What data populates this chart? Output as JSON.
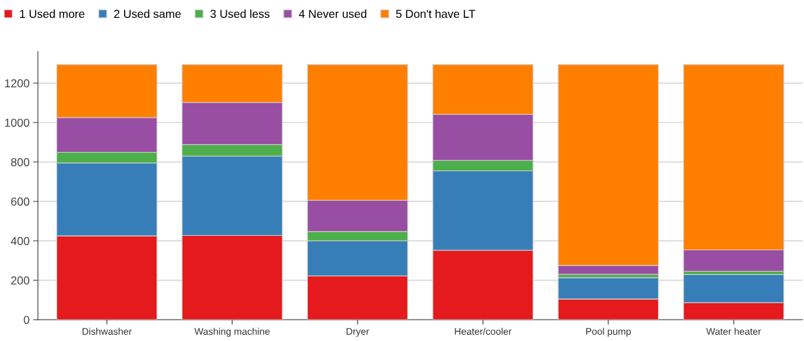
{
  "chart_data": {
    "type": "bar",
    "stacked": true,
    "categories": [
      "Dishwasher",
      "Washing machine",
      "Dryer",
      "Heater/cooler",
      "Pool pump",
      "Water heater"
    ],
    "series": [
      {
        "name": "1 Used more",
        "color": "#e41a1c",
        "values": [
          425,
          427,
          222,
          352,
          105,
          86
        ]
      },
      {
        "name": "2 Used same",
        "color": "#377eb8",
        "values": [
          370,
          403,
          178,
          403,
          108,
          143
        ]
      },
      {
        "name": "3 Used less",
        "color": "#4daf4a",
        "values": [
          54,
          58,
          47,
          53,
          17,
          17
        ]
      },
      {
        "name": "4 Never used",
        "color": "#984ea3",
        "values": [
          176,
          214,
          159,
          234,
          45,
          108
        ]
      },
      {
        "name": "5 Don't have LT",
        "color": "#ff7f00",
        "values": [
          269,
          192,
          688,
          252,
          1019,
          940
        ]
      }
    ],
    "ylim": [
      0,
      1360
    ],
    "yticks": [
      0,
      200,
      400,
      600,
      800,
      1000,
      1200
    ],
    "grid": "y",
    "legend": "top left"
  }
}
